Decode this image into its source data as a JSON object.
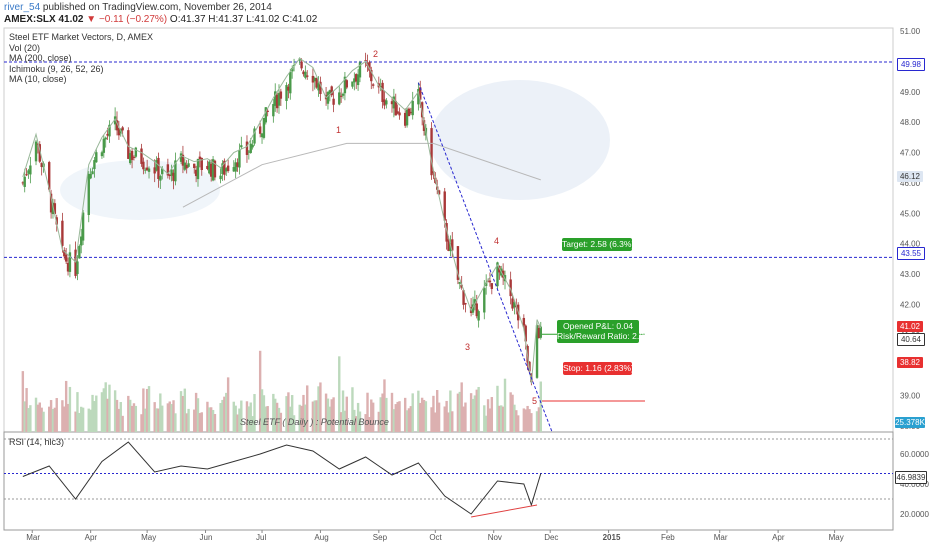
{
  "header": {
    "author": "river_54",
    "published": "published on TradingView.com, November 26, 2014",
    "symbol": "AMEX:SLX",
    "last": "41.02",
    "change": "▼ −0.11 (−0.27%)",
    "ohlc": "O:41.37 H:41.37 L:41.02 C:41.02"
  },
  "legend": {
    "title": "Steel ETF Market Vectors, D, AMEX",
    "items": [
      "Vol (20)",
      "MA (200, close)",
      "Ichimoku (9, 26, 52, 26)",
      "MA (10, close)"
    ]
  },
  "colors": {
    "up": "#4a9a4a",
    "down": "#a83838",
    "hline": "#2828d0",
    "trend": "#2828d0",
    "ma": "#b8b8b8",
    "ma10": "#9ab89a",
    "rsi": "#333333",
    "divergence": "#e04040"
  },
  "trade": {
    "target": "Target: 2.58 (6.3%)",
    "pnl": "Opened P&L: 0.04",
    "rr": "Risk/Reward Ratio: 2.22",
    "stop": "Stop: 1.16 (2.83%)"
  },
  "price_tags": [
    {
      "text": "49.98",
      "bg": "#ffffff",
      "fg": "#2828d0"
    },
    {
      "text": "46.12",
      "bg": "#dde6f2",
      "fg": "#333333"
    },
    {
      "text": "43.55",
      "bg": "#ffffff",
      "fg": "#2828d0"
    },
    {
      "text": "41.02",
      "bg": "#e83030",
      "fg": "#ffffff"
    },
    {
      "text": "40.64",
      "bg": "#ffffff",
      "fg": "#333333"
    },
    {
      "text": "38.82",
      "bg": "#e83030",
      "fg": "#ffffff"
    },
    {
      "text": "25.378K",
      "bg": "#2aa0d0",
      "fg": "#ffffff"
    },
    {
      "text": "46.9839",
      "bg": "#ffffff",
      "fg": "#333333"
    }
  ],
  "waves": [
    "1",
    "2",
    "3",
    "4",
    "5"
  ],
  "rsi_label": "RSI (14, hlc3)",
  "note": "Steel ETF ( Daily ) : Potential Bounce",
  "chart_data": {
    "type": "candlestick",
    "title": "Steel ETF Market Vectors, D, AMEX",
    "x_labels": [
      "Mar",
      "Apr",
      "May",
      "Jun",
      "Jul",
      "Aug",
      "Sep",
      "Oct",
      "Nov",
      "Dec",
      "2015",
      "Feb",
      "Mar",
      "Apr",
      "May"
    ],
    "price_ticks": [
      51,
      50,
      49,
      48,
      47,
      46,
      45,
      44,
      43,
      42,
      41,
      40,
      39,
      38
    ],
    "rsi_ticks": [
      60,
      40,
      20
    ],
    "ylim": [
      37.8,
      51.1
    ],
    "close_path": [
      [
        "2014-02-24",
        46.0
      ],
      [
        "2014-03-03",
        47.4
      ],
      [
        "2014-03-10",
        45.6
      ],
      [
        "2014-03-17",
        43.6
      ],
      [
        "2014-03-24",
        43.2
      ],
      [
        "2014-03-31",
        46.4
      ],
      [
        "2014-04-07",
        47.3
      ],
      [
        "2014-04-14",
        47.9
      ],
      [
        "2014-04-21",
        47.0
      ],
      [
        "2014-04-28",
        46.8
      ],
      [
        "2014-05-05",
        46.5
      ],
      [
        "2014-05-12",
        46.1
      ],
      [
        "2014-05-19",
        46.7
      ],
      [
        "2014-05-26",
        46.5
      ],
      [
        "2014-06-02",
        46.6
      ],
      [
        "2014-06-09",
        46.3
      ],
      [
        "2014-06-16",
        46.8
      ],
      [
        "2014-06-23",
        47.0
      ],
      [
        "2014-06-30",
        47.8
      ],
      [
        "2014-07-07",
        48.6
      ],
      [
        "2014-07-14",
        49.3
      ],
      [
        "2014-07-21",
        49.9
      ],
      [
        "2014-07-28",
        49.6
      ],
      [
        "2014-08-04",
        48.6
      ],
      [
        "2014-08-11",
        49.0
      ],
      [
        "2014-08-18",
        49.5
      ],
      [
        "2014-08-25",
        49.8
      ],
      [
        "2014-09-01",
        49.0
      ],
      [
        "2014-09-08",
        48.6
      ],
      [
        "2014-09-15",
        48.2
      ],
      [
        "2014-09-22",
        48.8
      ],
      [
        "2014-09-29",
        46.5
      ],
      [
        "2014-10-06",
        44.5
      ],
      [
        "2014-10-13",
        42.8
      ],
      [
        "2014-10-20",
        41.6
      ],
      [
        "2014-10-27",
        42.4
      ],
      [
        "2014-11-03",
        43.1
      ],
      [
        "2014-11-10",
        42.3
      ],
      [
        "2014-11-17",
        41.0
      ],
      [
        "2014-11-21",
        39.2
      ],
      [
        "2014-11-24",
        41.3
      ],
      [
        "2014-11-26",
        41.02
      ]
    ],
    "h_lines": [
      49.98,
      43.55
    ],
    "trend_line": [
      [
        "2014-09-22",
        49.3
      ],
      [
        "2014-12-02",
        37.8
      ]
    ],
    "rsi_path": [
      [
        "2014-02-24",
        45
      ],
      [
        "2014-03-10",
        52
      ],
      [
        "2014-03-24",
        30
      ],
      [
        "2014-04-07",
        55
      ],
      [
        "2014-04-21",
        68
      ],
      [
        "2014-05-05",
        48
      ],
      [
        "2014-05-19",
        52
      ],
      [
        "2014-06-02",
        50
      ],
      [
        "2014-06-16",
        55
      ],
      [
        "2014-06-30",
        60
      ],
      [
        "2014-07-14",
        66
      ],
      [
        "2014-07-28",
        62
      ],
      [
        "2014-08-11",
        50
      ],
      [
        "2014-08-25",
        58
      ],
      [
        "2014-09-08",
        46
      ],
      [
        "2014-09-22",
        54
      ],
      [
        "2014-10-06",
        32
      ],
      [
        "2014-10-20",
        20
      ],
      [
        "2014-11-03",
        42
      ],
      [
        "2014-11-17",
        40
      ],
      [
        "2014-11-21",
        26
      ],
      [
        "2014-11-26",
        47
      ]
    ],
    "rsi_levels": [
      70,
      30
    ],
    "volume_k": [
      58,
      30,
      40,
      22,
      35,
      30,
      26,
      22,
      28,
      20,
      24,
      26,
      22,
      28,
      24,
      26,
      30,
      34,
      38,
      42,
      30,
      28,
      26,
      32,
      34,
      30,
      22,
      28,
      24,
      25.4
    ]
  }
}
